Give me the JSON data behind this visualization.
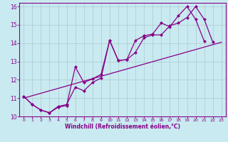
{
  "xlabel": "Windchill (Refroidissement éolien,°C)",
  "background_color": "#c8eaf0",
  "grid_color": "#b0c8d0",
  "line_color": "#880088",
  "xlim": [
    -0.5,
    23.5
  ],
  "ylim": [
    10,
    16.2
  ],
  "xticks": [
    0,
    1,
    2,
    3,
    4,
    5,
    6,
    7,
    8,
    9,
    10,
    11,
    12,
    13,
    14,
    15,
    16,
    17,
    18,
    19,
    20,
    21,
    22,
    23
  ],
  "yticks": [
    10,
    11,
    12,
    13,
    14,
    15,
    16
  ],
  "line1_x": [
    0,
    1,
    2,
    3,
    4,
    5,
    6,
    7,
    8,
    9,
    10,
    11,
    12,
    13,
    14,
    15,
    16,
    17,
    18,
    19,
    20,
    21
  ],
  "line1_y": [
    11.1,
    10.65,
    10.35,
    10.2,
    10.5,
    10.6,
    12.7,
    11.85,
    12.05,
    12.3,
    14.15,
    13.05,
    13.1,
    14.15,
    14.4,
    14.5,
    15.1,
    14.9,
    15.5,
    16.0,
    15.3,
    14.1
  ],
  "line2_x": [
    0,
    1,
    2,
    3,
    4,
    5,
    6,
    7,
    8,
    9,
    10,
    11,
    12,
    13,
    14,
    15,
    16,
    17,
    18,
    19,
    20,
    21,
    22,
    23
  ],
  "line2_y": [
    11.1,
    10.65,
    10.35,
    10.2,
    10.55,
    10.65,
    11.6,
    11.4,
    11.85,
    12.1,
    14.15,
    13.05,
    13.1,
    13.5,
    14.3,
    14.45,
    14.45,
    14.95,
    15.1,
    15.4,
    16.0,
    15.3,
    14.05,
    null
  ],
  "line3_x": [
    0,
    23
  ],
  "line3_y": [
    11.0,
    14.05
  ],
  "marker": "D",
  "markersize": 2.5,
  "linewidth": 0.9
}
